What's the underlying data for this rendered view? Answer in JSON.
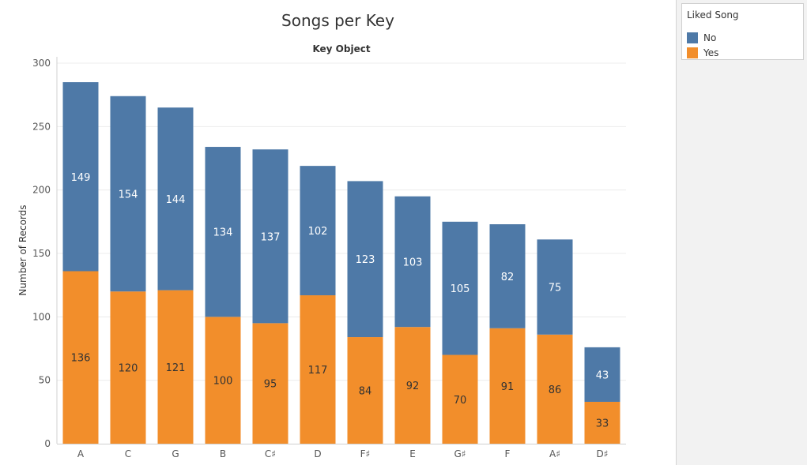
{
  "chart_data": {
    "type": "bar",
    "stacked": true,
    "title": "Songs per Key",
    "subtitle": "Key Object",
    "ylabel": "Number of Records",
    "xlabel": "",
    "ylim": [
      0,
      300
    ],
    "yticks": [
      0,
      50,
      100,
      150,
      200,
      250,
      300
    ],
    "grid": true,
    "categories": [
      "A",
      "C",
      "G",
      "B",
      "C♯",
      "D",
      "F♯",
      "E",
      "G♯",
      "F",
      "A♯",
      "D♯"
    ],
    "series": [
      {
        "name": "Yes",
        "color": "#f28e2b",
        "label_color": "#333333",
        "values": [
          136,
          120,
          121,
          100,
          95,
          117,
          84,
          92,
          70,
          91,
          86,
          33
        ]
      },
      {
        "name": "No",
        "color": "#4e79a7",
        "label_color": "#ffffff",
        "values": [
          149,
          154,
          144,
          134,
          137,
          102,
          123,
          103,
          105,
          82,
          75,
          43
        ]
      }
    ]
  },
  "legend": {
    "title": "Liked Song",
    "items": [
      {
        "label": "No",
        "color": "#4e79a7"
      },
      {
        "label": "Yes",
        "color": "#f28e2b"
      }
    ]
  }
}
